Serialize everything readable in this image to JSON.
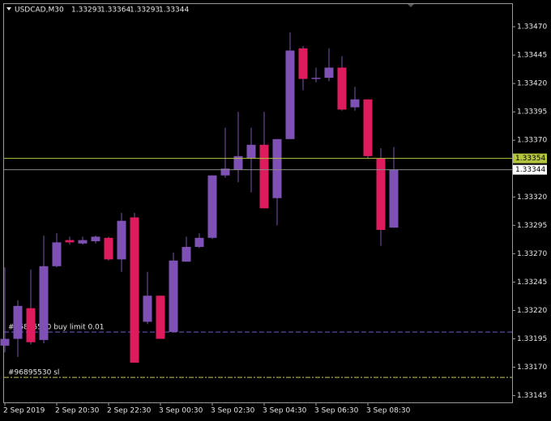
{
  "chart_data": {
    "type": "candlestick",
    "title": "USDCAD,M30",
    "x": [
      "2 Sep 2019",
      null,
      null,
      null,
      "2 Sep 20:30",
      null,
      null,
      null,
      "2 Sep 22:30",
      null,
      null,
      null,
      "3 Sep 00:30",
      null,
      null,
      null,
      "3 Sep 02:30",
      null,
      null,
      null,
      "3 Sep 04:30",
      null,
      null,
      null,
      "3 Sep 06:30",
      null,
      null,
      null,
      "3 Sep 08:30",
      null,
      null
    ],
    "open": [
      1.33189,
      1.33195,
      1.33222,
      1.33194,
      1.33259,
      1.33282,
      1.33279,
      1.33281,
      1.33284,
      1.33265,
      1.33302,
      1.3321,
      1.33233,
      1.33201,
      1.33263,
      1.33276,
      1.33284,
      1.33339,
      1.33344,
      1.33354,
      1.33366,
      1.33319,
      1.33371,
      1.33451,
      1.33424,
      1.33425,
      1.33434,
      1.33399,
      1.33406,
      1.33354,
      1.33293
    ],
    "high": [
      1.33258,
      1.33229,
      1.33256,
      1.33286,
      1.33288,
      1.33285,
      1.33285,
      1.33286,
      1.33285,
      1.33306,
      1.33306,
      1.33254,
      1.33233,
      1.33271,
      1.33285,
      1.33288,
      1.33339,
      1.33381,
      1.33395,
      1.33381,
      1.33395,
      1.33371,
      1.33465,
      1.33453,
      1.33434,
      1.33451,
      1.33444,
      1.33417,
      1.33406,
      1.33363,
      1.33364
    ],
    "low": [
      1.33183,
      1.33179,
      1.3319,
      1.33191,
      1.33258,
      1.33278,
      1.33278,
      1.33279,
      1.33264,
      1.33254,
      1.33174,
      1.33208,
      1.33195,
      1.33201,
      1.33263,
      1.33275,
      1.33283,
      1.33337,
      1.33333,
      1.33324,
      1.3331,
      1.33295,
      1.33371,
      1.33414,
      1.33421,
      1.33422,
      1.33396,
      1.33396,
      1.33354,
      1.33277,
      1.33293
    ],
    "close": [
      1.33195,
      1.33224,
      1.33192,
      1.33259,
      1.3328,
      1.3328,
      1.33282,
      1.33285,
      1.33265,
      1.33299,
      1.33174,
      1.33233,
      1.33195,
      1.33264,
      1.33276,
      1.33284,
      1.33339,
      1.33345,
      1.33356,
      1.33366,
      1.3331,
      1.33371,
      1.33449,
      1.33424,
      1.33425,
      1.33434,
      1.33397,
      1.33406,
      1.33356,
      1.33291,
      1.33344
    ],
    "colors": {
      "up": "#7e52b4",
      "down": "#dc1c5c"
    },
    "ylim": [
      1.33139,
      1.3349
    ],
    "yticks": [
      {
        "value": 1.3347,
        "label": "1.33470"
      },
      1.33445,
      {
        "value": 1.3342,
        "label": "1.33420"
      },
      1.33395,
      {
        "value": 1.3337,
        "label": "1.33370"
      },
      {
        "value": 1.3332,
        "label": "1.33320"
      },
      1.33295,
      {
        "value": 1.3327,
        "label": "1.33270"
      },
      1.33245,
      {
        "value": 1.3322,
        "label": "1.33220"
      },
      1.33195,
      {
        "value": 1.3317,
        "label": "1.33170"
      },
      1.33145
    ],
    "price_levels": [
      {
        "value": 1.33354,
        "color": "#b4c43c"
      },
      {
        "value": 1.33344,
        "color": "#8a8a8a"
      }
    ],
    "order_lines": [
      {
        "value": 1.33201,
        "label": "#96895530 buy limit 0.01",
        "color": "#6a5ec8"
      },
      {
        "value": 1.33161,
        "label": "#96895530 sl",
        "color": "#c8c84a"
      }
    ]
  }
}
